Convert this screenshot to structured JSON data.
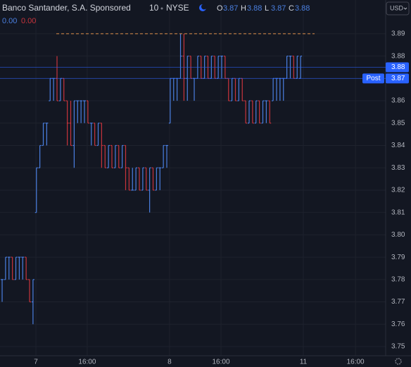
{
  "chart_data": {
    "type": "ohlc",
    "title": "Banco Santander, S.A. Sponsored",
    "interval": "10",
    "exchange": "NYSE",
    "currency": "USD",
    "legend": [
      {
        "label": "O",
        "value": 3.87
      },
      {
        "label": "H",
        "value": 3.88
      },
      {
        "label": "L",
        "value": 3.87
      },
      {
        "label": "C",
        "value": 3.88
      }
    ],
    "change": [
      "0.00",
      "0.00"
    ],
    "up_color": "#4a7fe0",
    "down_color": "#c8343c",
    "open": [
      3.78,
      3.78,
      3.79,
      3.79,
      3.78,
      3.79,
      3.79,
      3.79,
      3.78,
      3.77,
      3.81,
      3.83,
      3.84,
      3.85,
      3.86,
      3.87,
      3.87,
      3.86,
      3.87,
      3.86,
      3.85,
      3.84,
      3.86,
      3.86,
      3.86,
      3.86,
      3.85,
      3.85,
      3.84,
      3.85,
      3.84,
      3.83,
      3.84,
      3.83,
      3.84,
      3.83,
      3.84,
      3.83,
      3.82,
      3.82,
      3.83,
      3.82,
      3.83,
      3.82,
      3.83,
      3.82,
      3.83,
      3.83,
      3.84,
      3.85,
      3.87,
      3.87,
      3.87,
      3.88,
      3.87,
      3.88,
      3.87,
      3.87,
      3.88,
      3.87,
      3.88,
      3.87,
      3.88,
      3.87,
      3.88,
      3.88,
      3.87,
      3.86,
      3.87,
      3.86,
      3.87,
      3.86,
      3.85,
      3.86,
      3.85,
      3.86,
      3.85,
      3.86,
      3.86,
      3.86,
      3.87,
      3.87,
      3.87,
      3.87,
      3.88,
      3.88,
      3.87,
      3.87
    ],
    "high": [
      3.78,
      3.79,
      3.79,
      3.79,
      3.79,
      3.79,
      3.79,
      3.79,
      3.78,
      3.78,
      3.83,
      3.84,
      3.85,
      3.85,
      3.87,
      3.87,
      3.88,
      3.87,
      3.87,
      3.86,
      3.86,
      3.86,
      3.86,
      3.86,
      3.86,
      3.86,
      3.85,
      3.85,
      3.85,
      3.85,
      3.84,
      3.84,
      3.84,
      3.84,
      3.84,
      3.84,
      3.84,
      3.83,
      3.83,
      3.83,
      3.83,
      3.83,
      3.83,
      3.83,
      3.83,
      3.83,
      3.83,
      3.84,
      3.84,
      3.87,
      3.87,
      3.87,
      3.89,
      3.89,
      3.88,
      3.88,
      3.87,
      3.88,
      3.88,
      3.88,
      3.88,
      3.88,
      3.88,
      3.88,
      3.88,
      3.88,
      3.87,
      3.87,
      3.87,
      3.87,
      3.87,
      3.86,
      3.86,
      3.86,
      3.86,
      3.86,
      3.86,
      3.86,
      3.86,
      3.87,
      3.87,
      3.87,
      3.87,
      3.88,
      3.88,
      3.88,
      3.88,
      3.88
    ],
    "low": [
      3.77,
      3.78,
      3.78,
      3.78,
      3.78,
      3.78,
      3.78,
      3.78,
      3.77,
      3.76,
      3.81,
      3.83,
      3.84,
      3.84,
      3.86,
      3.86,
      3.86,
      3.86,
      3.86,
      3.84,
      3.84,
      3.83,
      3.85,
      3.85,
      3.85,
      3.85,
      3.84,
      3.84,
      3.84,
      3.83,
      3.83,
      3.83,
      3.83,
      3.83,
      3.83,
      3.83,
      3.82,
      3.82,
      3.82,
      3.82,
      3.82,
      3.82,
      3.82,
      3.81,
      3.82,
      3.82,
      3.82,
      3.83,
      3.83,
      3.85,
      3.86,
      3.86,
      3.87,
      3.86,
      3.86,
      3.87,
      3.86,
      3.87,
      3.87,
      3.87,
      3.87,
      3.87,
      3.87,
      3.87,
      3.87,
      3.87,
      3.86,
      3.86,
      3.86,
      3.86,
      3.86,
      3.85,
      3.85,
      3.85,
      3.85,
      3.85,
      3.85,
      3.85,
      3.85,
      3.86,
      3.86,
      3.86,
      3.86,
      3.87,
      3.87,
      3.87,
      3.87,
      3.87
    ],
    "close": [
      3.78,
      3.79,
      3.79,
      3.78,
      3.79,
      3.79,
      3.79,
      3.78,
      3.77,
      3.78,
      3.83,
      3.84,
      3.85,
      3.85,
      3.87,
      3.87,
      3.86,
      3.87,
      3.86,
      3.85,
      3.84,
      3.86,
      3.86,
      3.86,
      3.86,
      3.85,
      3.85,
      3.84,
      3.85,
      3.84,
      3.83,
      3.84,
      3.83,
      3.84,
      3.83,
      3.84,
      3.83,
      3.82,
      3.82,
      3.83,
      3.82,
      3.83,
      3.82,
      3.83,
      3.82,
      3.83,
      3.83,
      3.84,
      3.84,
      3.87,
      3.87,
      3.87,
      3.88,
      3.87,
      3.88,
      3.87,
      3.87,
      3.88,
      3.87,
      3.88,
      3.87,
      3.88,
      3.87,
      3.88,
      3.88,
      3.87,
      3.86,
      3.87,
      3.86,
      3.87,
      3.86,
      3.85,
      3.86,
      3.85,
      3.86,
      3.85,
      3.86,
      3.86,
      3.85,
      3.87,
      3.87,
      3.87,
      3.87,
      3.88,
      3.88,
      3.87,
      3.88,
      3.88
    ],
    "xlim": [
      -0.62,
      111.8
    ],
    "xticks": [
      {
        "value": 9.85,
        "label": "7"
      },
      {
        "value": 24.8,
        "label": "16:00"
      },
      {
        "value": 48.8,
        "label": "8"
      },
      {
        "value": 63.8,
        "label": "16:00"
      },
      {
        "value": 87.8,
        "label": "11"
      },
      {
        "value": 103,
        "label": "16:00"
      }
    ],
    "ylim": [
      3.7459,
      3.9051
    ],
    "yticks": [
      3.75,
      3.76,
      3.77,
      3.78,
      3.79,
      {
        "value": 3.8,
        "label": "3.80"
      },
      3.81,
      3.82,
      3.83,
      3.84,
      3.85,
      3.86,
      3.87,
      3.88,
      3.89
    ],
    "grid": true,
    "reference_line": {
      "value": 3.89,
      "color": "#e0904a"
    },
    "price_lines": [
      {
        "value": 3.875,
        "label": "3.88",
        "color": "#2962ff"
      },
      {
        "value": 3.87,
        "label": "3.87",
        "tag": "Post",
        "color": "#2962ff"
      }
    ]
  }
}
